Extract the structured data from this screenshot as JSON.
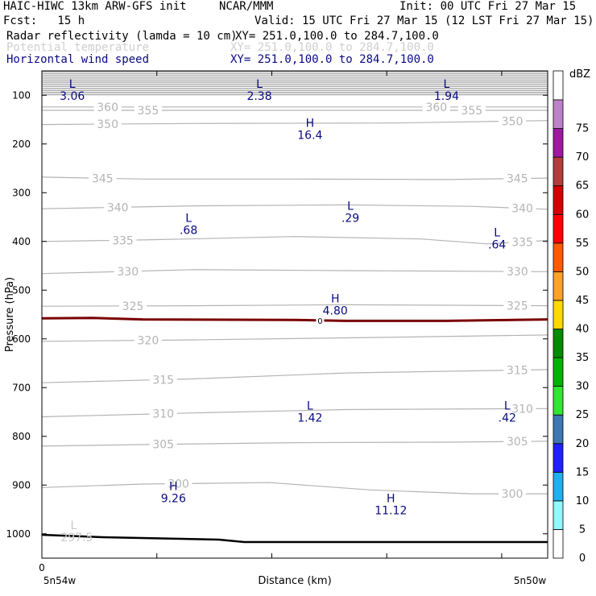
{
  "header": {
    "title_left": "HAIC-HIWC 13km ARW-GFS init",
    "title_org": "NCAR/MMM",
    "init": "Init: 00 UTC Fri 27 Mar 15",
    "fcst": "Fcst:   15 h",
    "valid": "Valid: 15 UTC Fri 27 Mar 15 (12 LST Fri 27 Mar 15)",
    "field1_name": "Radar reflectivity (lamda = 10 cm)",
    "field1_xy": "XY= 251.0,100.0 to 284.7,100.0",
    "field2_name": "Potential temperature",
    "field2_xy": "XY= 251.0,100.0 to 284.7,100.0",
    "field3_name": "Horizontal wind speed",
    "field3_xy": "XY= 251.0,100.0 to 284.7,100.0"
  },
  "colors": {
    "navy": "#0a0a82",
    "theta": "#b4b4b4",
    "zero_line": "#7a0000",
    "terrain": "#000000"
  },
  "chart_data": {
    "type": "line",
    "xlabel": "Distance (km)",
    "ylabel": "Pressure (hPa)",
    "x_tick_labels": [
      "0"
    ],
    "x_left_label": "5n54w",
    "x_right_label": "5n50w",
    "y_axis": {
      "reversed": true,
      "ylim": [
        1050,
        50
      ],
      "ticks": [
        100,
        200,
        300,
        400,
        500,
        600,
        700,
        800,
        900,
        1000
      ]
    },
    "theta_series": [
      {
        "name": "360",
        "labels": [
          {
            "text": "360",
            "x": 0.13
          },
          {
            "text": "360",
            "x": 0.78
          }
        ],
        "points": [
          [
            0,
            124
          ],
          [
            0.3,
            124
          ],
          [
            0.7,
            124
          ],
          [
            1,
            124
          ]
        ]
      },
      {
        "name": "355",
        "labels": [
          {
            "text": "355",
            "x": 0.21
          },
          {
            "text": "355",
            "x": 0.85
          }
        ],
        "points": [
          [
            0,
            131
          ],
          [
            0.3,
            131
          ],
          [
            0.7,
            131
          ],
          [
            1,
            131
          ]
        ]
      },
      {
        "name": "350",
        "labels": [
          {
            "text": "350",
            "x": 0.13
          },
          {
            "text": "350",
            "x": 0.93
          }
        ],
        "points": [
          [
            0,
            160
          ],
          [
            0.3,
            158
          ],
          [
            0.7,
            157
          ],
          [
            1,
            152
          ]
        ]
      },
      {
        "name": "345",
        "labels": [
          {
            "text": "345",
            "x": 0.12
          },
          {
            "text": "345",
            "x": 0.94
          }
        ],
        "points": [
          [
            0,
            268
          ],
          [
            0.2,
            272
          ],
          [
            0.5,
            272
          ],
          [
            0.8,
            273
          ],
          [
            1,
            270
          ]
        ]
      },
      {
        "name": "340",
        "labels": [
          {
            "text": "340",
            "x": 0.15
          },
          {
            "text": "340",
            "x": 0.95
          }
        ],
        "points": [
          [
            0,
            333
          ],
          [
            0.3,
            327
          ],
          [
            0.6,
            325
          ],
          [
            0.85,
            328
          ],
          [
            1,
            334
          ]
        ]
      },
      {
        "name": "335",
        "labels": [
          {
            "text": "335",
            "x": 0.16
          },
          {
            "text": "335",
            "x": 0.95
          }
        ],
        "points": [
          [
            0,
            400
          ],
          [
            0.2,
            397
          ],
          [
            0.5,
            390
          ],
          [
            0.75,
            395
          ],
          [
            0.88,
            405
          ],
          [
            1,
            398
          ]
        ]
      },
      {
        "name": "330",
        "labels": [
          {
            "text": "330",
            "x": 0.17
          },
          {
            "text": "330",
            "x": 0.94
          }
        ],
        "points": [
          [
            0,
            466
          ],
          [
            0.3,
            458
          ],
          [
            0.6,
            460
          ],
          [
            1,
            462
          ]
        ]
      },
      {
        "name": "325",
        "labels": [
          {
            "text": "325",
            "x": 0.18
          },
          {
            "text": "325",
            "x": 0.94
          }
        ],
        "points": [
          [
            0,
            533
          ],
          [
            0.3,
            532
          ],
          [
            0.6,
            530
          ],
          [
            1,
            532
          ]
        ]
      },
      {
        "name": "320",
        "labels": [
          {
            "text": "320",
            "x": 0.21
          }
        ],
        "points": [
          [
            0,
            605
          ],
          [
            0.3,
            602
          ],
          [
            0.6,
            598
          ],
          [
            1,
            592
          ]
        ]
      },
      {
        "name": "315",
        "labels": [
          {
            "text": "315",
            "x": 0.24
          },
          {
            "text": "315",
            "x": 0.94
          }
        ],
        "points": [
          [
            0,
            690
          ],
          [
            0.3,
            682
          ],
          [
            0.6,
            670
          ],
          [
            1,
            663
          ]
        ]
      },
      {
        "name": "310",
        "labels": [
          {
            "text": "310",
            "x": 0.24
          },
          {
            "text": "310",
            "x": 0.95
          }
        ],
        "points": [
          [
            0,
            760
          ],
          [
            0.3,
            752
          ],
          [
            0.6,
            745
          ],
          [
            1,
            743
          ]
        ]
      },
      {
        "name": "305",
        "labels": [
          {
            "text": "305",
            "x": 0.24
          },
          {
            "text": "305",
            "x": 0.94
          }
        ],
        "points": [
          [
            0,
            820
          ],
          [
            0.2,
            817
          ],
          [
            0.5,
            813
          ],
          [
            0.8,
            812
          ],
          [
            1,
            810
          ]
        ]
      },
      {
        "name": "300",
        "labels": [
          {
            "text": "300",
            "x": 0.27
          },
          {
            "text": "300",
            "x": 0.93
          }
        ],
        "points": [
          [
            0,
            905
          ],
          [
            0.2,
            898
          ],
          [
            0.45,
            895
          ],
          [
            0.65,
            910
          ],
          [
            0.85,
            918
          ],
          [
            1,
            918
          ]
        ]
      }
    ],
    "terrain_points": [
      [
        0,
        1002
      ],
      [
        0.12,
        1007
      ],
      [
        0.35,
        1012
      ],
      [
        0.4,
        1017
      ],
      [
        0.7,
        1017
      ],
      [
        1,
        1017
      ]
    ],
    "zero_line_points": [
      [
        0,
        558
      ],
      [
        0.1,
        557
      ],
      [
        0.2,
        560
      ],
      [
        0.5,
        561
      ],
      [
        0.6,
        563
      ],
      [
        0.8,
        563
      ],
      [
        1,
        560
      ]
    ],
    "zero_line_label": "0",
    "zero_line_label_x": 0.55,
    "extrema": [
      {
        "type": "L",
        "value": "3.06",
        "x": 0.06,
        "p": 85
      },
      {
        "type": "L",
        "value": "2.38",
        "x": 0.43,
        "p": 85
      },
      {
        "type": "L",
        "value": "1.94",
        "x": 0.8,
        "p": 85
      },
      {
        "type": "H",
        "value": "16.4",
        "x": 0.53,
        "p": 165
      },
      {
        "type": "L",
        "value": ".68",
        "x": 0.29,
        "p": 360
      },
      {
        "type": "L",
        "value": ".29",
        "x": 0.61,
        "p": 335
      },
      {
        "type": "L",
        "value": ".64",
        "x": 0.9,
        "p": 390
      },
      {
        "type": "H",
        "value": "4.80",
        "x": 0.58,
        "p": 525
      },
      {
        "type": "L",
        "value": "1.42",
        "x": 0.53,
        "p": 745
      },
      {
        "type": "L",
        "value": ".42",
        "x": 0.92,
        "p": 745
      },
      {
        "type": "H",
        "value": "9.26",
        "x": 0.26,
        "p": 910
      },
      {
        "type": "H",
        "value": "11.12",
        "x": 0.69,
        "p": 935
      }
    ],
    "grey_extrema": [
      {
        "type": "L",
        "text": "L",
        "value": "297.5",
        "x": 0.05,
        "p": 1005
      }
    ]
  },
  "colorbar": {
    "unit": "dBZ",
    "levels": [
      "0",
      "5",
      "10",
      "15",
      "20",
      "25",
      "30",
      "35",
      "40",
      "45",
      "50",
      "55",
      "60",
      "65",
      "70",
      "75"
    ],
    "colors": [
      "#ffffff",
      "#8ffaff",
      "#20b0f2",
      "#2020ff",
      "#3c78b4",
      "#32e632",
      "#00b400",
      "#008c00",
      "#ffd800",
      "#ffa028",
      "#ff5a00",
      "#ff0000",
      "#d40000",
      "#b43c3c",
      "#a018a0",
      "#be82c8"
    ]
  }
}
